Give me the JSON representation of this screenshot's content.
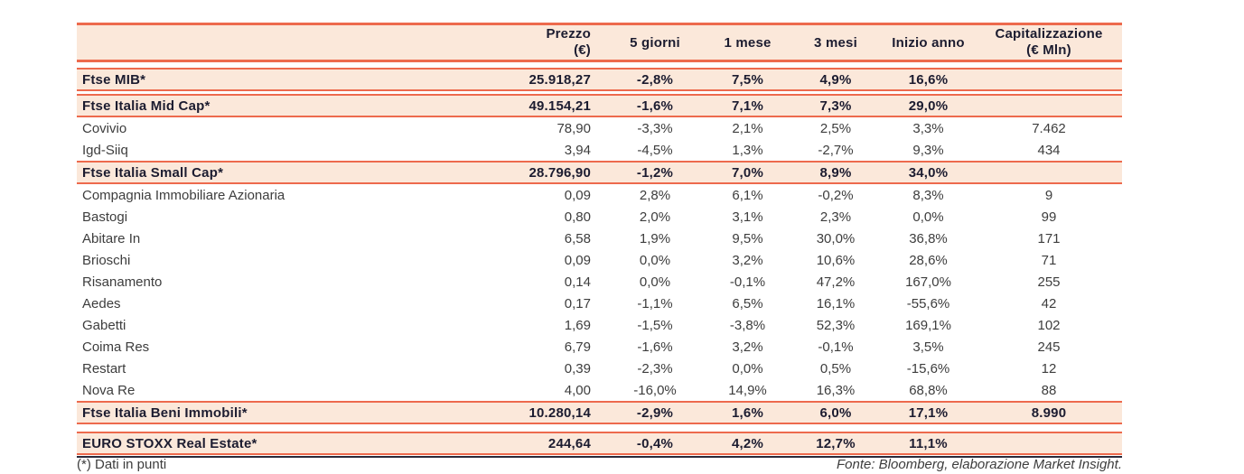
{
  "colors": {
    "border_orange": "#ED6A4D",
    "row_highlight_bg": "#FBE8DA",
    "bottom_rule": "#2A2A3A",
    "text_bold": "#1C1C30",
    "text_regular": "#3D3D3D"
  },
  "table": {
    "header": {
      "name": "",
      "prezzo_line1": "Prezzo",
      "prezzo_line2": "(€)",
      "col_5_giorni": "5 giorni",
      "col_1_mese": "1 mese",
      "col_3_mesi": "3 mesi",
      "col_inizio_anno": "Inizio anno",
      "cap_line1": "Capitalizzazione",
      "cap_line2": "(€ Mln)"
    },
    "rows": [
      {
        "type": "index",
        "name": "Ftse MIB*",
        "prezzo": "25.918,27",
        "d5": "-2,8%",
        "m1": "7,5%",
        "m3": "4,9%",
        "ytd": "16,6%",
        "cap": ""
      },
      {
        "type": "index",
        "name": "Ftse Italia Mid Cap*",
        "prezzo": "49.154,21",
        "d5": "-1,6%",
        "m1": "7,1%",
        "m3": "7,3%",
        "ytd": "29,0%",
        "cap": ""
      },
      {
        "type": "stock",
        "name": "Covivio",
        "prezzo": "78,90",
        "d5": "-3,3%",
        "m1": "2,1%",
        "m3": "2,5%",
        "ytd": "3,3%",
        "cap": "7.462"
      },
      {
        "type": "stock",
        "name": "Igd-Siiq",
        "prezzo": "3,94",
        "d5": "-4,5%",
        "m1": "1,3%",
        "m3": "-2,7%",
        "ytd": "9,3%",
        "cap": "434"
      },
      {
        "type": "index",
        "name": "Ftse Italia Small Cap*",
        "prezzo": "28.796,90",
        "d5": "-1,2%",
        "m1": "7,0%",
        "m3": "8,9%",
        "ytd": "34,0%",
        "cap": ""
      },
      {
        "type": "stock",
        "name": "Compagnia Immobiliare Azionaria",
        "prezzo": "0,09",
        "d5": "2,8%",
        "m1": "6,1%",
        "m3": "-0,2%",
        "ytd": "8,3%",
        "cap": "9"
      },
      {
        "type": "stock",
        "name": "Bastogi",
        "prezzo": "0,80",
        "d5": "2,0%",
        "m1": "3,1%",
        "m3": "2,3%",
        "ytd": "0,0%",
        "cap": "99"
      },
      {
        "type": "stock",
        "name": "Abitare In",
        "prezzo": "6,58",
        "d5": "1,9%",
        "m1": "9,5%",
        "m3": "30,0%",
        "ytd": "36,8%",
        "cap": "171"
      },
      {
        "type": "stock",
        "name": "Brioschi",
        "prezzo": "0,09",
        "d5": "0,0%",
        "m1": "3,2%",
        "m3": "10,6%",
        "ytd": "28,6%",
        "cap": "71"
      },
      {
        "type": "stock",
        "name": "Risanamento",
        "prezzo": "0,14",
        "d5": "0,0%",
        "m1": "-0,1%",
        "m3": "47,2%",
        "ytd": "167,0%",
        "cap": "255"
      },
      {
        "type": "stock",
        "name": "Aedes",
        "prezzo": "0,17",
        "d5": "-1,1%",
        "m1": "6,5%",
        "m3": "16,1%",
        "ytd": "-55,6%",
        "cap": "42"
      },
      {
        "type": "stock",
        "name": "Gabetti",
        "prezzo": "1,69",
        "d5": "-1,5%",
        "m1": "-3,8%",
        "m3": "52,3%",
        "ytd": "169,1%",
        "cap": "102"
      },
      {
        "type": "stock",
        "name": "Coima Res",
        "prezzo": "6,79",
        "d5": "-1,6%",
        "m1": "3,2%",
        "m3": "-0,1%",
        "ytd": "3,5%",
        "cap": "245"
      },
      {
        "type": "stock",
        "name": "Restart",
        "prezzo": "0,39",
        "d5": "-2,3%",
        "m1": "0,0%",
        "m3": "0,5%",
        "ytd": "-15,6%",
        "cap": "12"
      },
      {
        "type": "stock",
        "name": "Nova Re",
        "prezzo": "4,00",
        "d5": "-16,0%",
        "m1": "14,9%",
        "m3": "16,3%",
        "ytd": "68,8%",
        "cap": "88"
      },
      {
        "type": "index",
        "name": "Ftse Italia Beni Immobili*",
        "prezzo": "10.280,14",
        "d5": "-2,9%",
        "m1": "1,6%",
        "m3": "6,0%",
        "ytd": "17,1%",
        "cap": "8.990"
      },
      {
        "type": "index",
        "name": "EURO STOXX Real Estate*",
        "prezzo": "244,64",
        "d5": "-0,4%",
        "m1": "4,2%",
        "m3": "12,7%",
        "ytd": "11,1%",
        "cap": ""
      }
    ]
  },
  "footer": {
    "note": "(*) Dati in punti",
    "source": "Fonte: Bloomberg, elaborazione Market Insight."
  }
}
